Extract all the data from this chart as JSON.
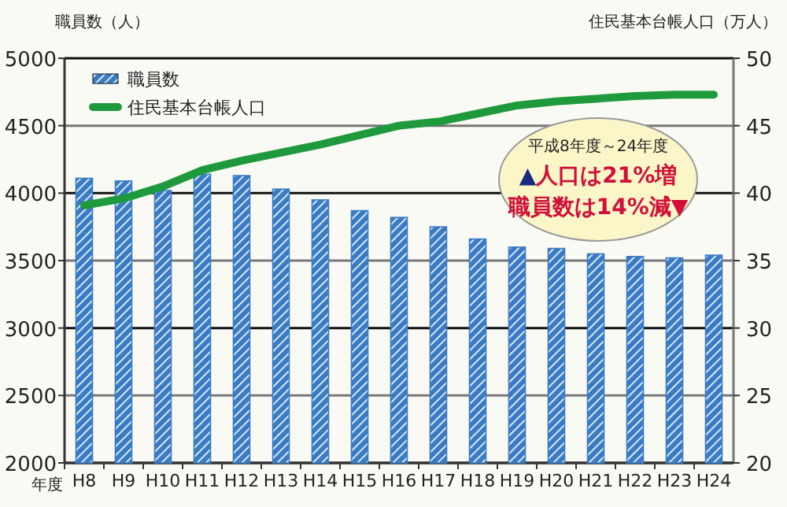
{
  "chart_data": {
    "type": "bar",
    "ylabel": "職員数（人）",
    "y2label": "住民基本台帳人口（万人）",
    "xlabel": "年度",
    "categories": [
      "H8",
      "H9",
      "H10",
      "H11",
      "H12",
      "H13",
      "H14",
      "H15",
      "H16",
      "H17",
      "H18",
      "H19",
      "H20",
      "H21",
      "H22",
      "H23",
      "H24"
    ],
    "series": [
      {
        "name": "職員数",
        "color": "#3a7cc4",
        "values": [
          4110,
          4090,
          4020,
          4140,
          4130,
          4030,
          3950,
          3870,
          3820,
          3750,
          3660,
          3600,
          3590,
          3550,
          3530,
          3520,
          3540
        ]
      },
      {
        "name": "住民基本台帳人口",
        "type": "line",
        "axis": "y2",
        "color": "#1e9a3c",
        "values": [
          39.1,
          39.6,
          40.5,
          41.7,
          42.4,
          43.0,
          43.6,
          44.3,
          45.0,
          45.3,
          45.9,
          46.5,
          46.8,
          47.0,
          47.2,
          47.3,
          47.3
        ]
      }
    ],
    "ylim": [
      2000,
      5000
    ],
    "yticks": [
      2000,
      2500,
      3000,
      3500,
      4000,
      4500,
      5000
    ],
    "y2lim": [
      20,
      50
    ],
    "y2ticks": [
      20,
      25,
      30,
      35,
      40,
      45,
      50
    ],
    "grid": "y",
    "legend": "top left",
    "annotations": [
      "平成8年度～24年度",
      "▲人口は21%増",
      "職員数は14%減▼"
    ]
  }
}
